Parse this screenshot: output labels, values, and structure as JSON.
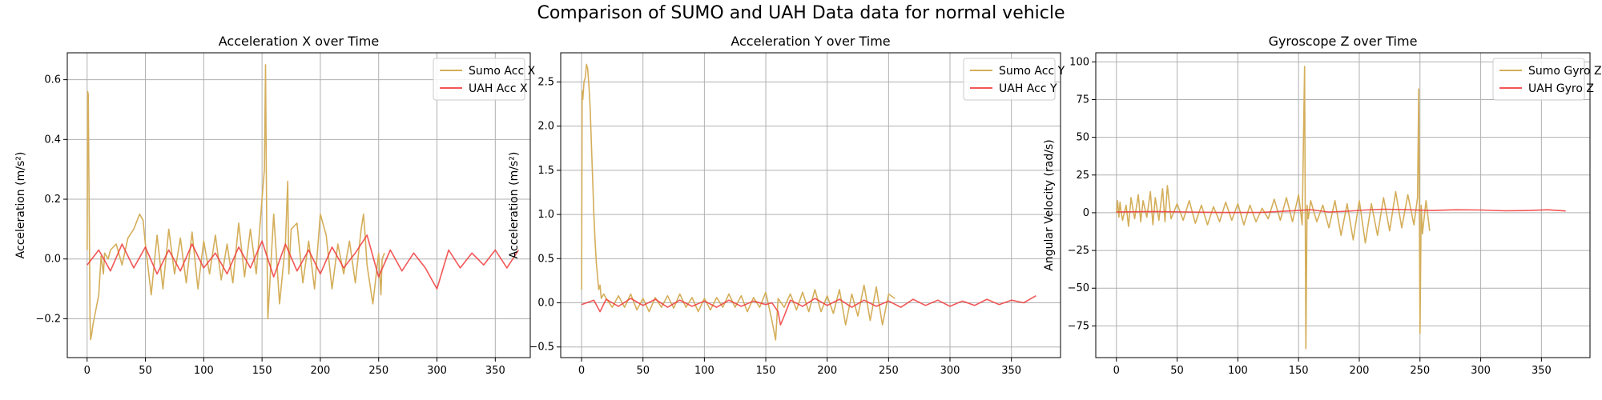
{
  "figure_title": "Comparison of SUMO and UAH Data data for normal vehicle",
  "colors": {
    "sumo": "#d4ae5a",
    "uah": "#f03a3a",
    "grid": "#b0b0b0"
  },
  "chart_data": [
    {
      "type": "line",
      "title": "Acceleration X over Time",
      "xlabel": "",
      "ylabel": "Acceleration (m/s²)",
      "xlim": [
        -17,
        380
      ],
      "ylim": [
        -0.33,
        0.69
      ],
      "xticks": [
        0,
        50,
        100,
        150,
        200,
        250,
        300,
        350
      ],
      "yticks": [
        -0.2,
        0.0,
        0.2,
        0.4,
        0.6
      ],
      "ytick_labels": [
        "−0.2",
        "0.0",
        "0.2",
        "0.4",
        "0.6"
      ],
      "grid": true,
      "legend_position": "top-right",
      "series": [
        {
          "name": "Sumo Acc X",
          "x": [
            0,
            0.5,
            1,
            1.5,
            2,
            2.5,
            3,
            4,
            5,
            6,
            8,
            10,
            12,
            14,
            15,
            18,
            20,
            25,
            30,
            35,
            40,
            45,
            48,
            50,
            55,
            60,
            65,
            70,
            75,
            80,
            85,
            90,
            95,
            100,
            105,
            110,
            115,
            120,
            125,
            130,
            135,
            140,
            145,
            150,
            152,
            153,
            154,
            155,
            160,
            165,
            170,
            172,
            173,
            175,
            180,
            185,
            190,
            195,
            200,
            205,
            210,
            215,
            220,
            225,
            230,
            235,
            237,
            238,
            240,
            245,
            250,
            252,
            253,
            255
          ],
          "y": [
            0.03,
            0.56,
            0.55,
            0.3,
            0.05,
            -0.2,
            -0.27,
            -0.25,
            -0.22,
            -0.2,
            -0.16,
            -0.12,
            0.01,
            -0.05,
            0.02,
            0.0,
            0.03,
            0.05,
            -0.02,
            0.07,
            0.1,
            0.15,
            0.13,
            0.05,
            -0.12,
            0.08,
            -0.1,
            0.1,
            -0.05,
            0.07,
            -0.08,
            0.09,
            -0.1,
            0.06,
            -0.05,
            0.08,
            -0.07,
            0.05,
            -0.08,
            0.12,
            -0.06,
            0.1,
            -0.05,
            0.2,
            0.3,
            0.65,
            0.1,
            -0.2,
            0.15,
            -0.15,
            0.05,
            0.26,
            -0.05,
            0.1,
            0.12,
            -0.08,
            0.06,
            -0.1,
            0.15,
            0.08,
            -0.1,
            0.05,
            -0.05,
            0.06,
            -0.08,
            0.1,
            0.15,
            0.1,
            -0.02,
            -0.15,
            0.02,
            -0.12,
            0.0,
            0.02
          ]
        },
        {
          "name": "UAH Acc X",
          "x": [
            0,
            10,
            20,
            30,
            40,
            50,
            60,
            70,
            80,
            90,
            100,
            110,
            120,
            130,
            140,
            150,
            160,
            170,
            180,
            190,
            200,
            210,
            220,
            230,
            240,
            250,
            260,
            270,
            280,
            290,
            300,
            310,
            320,
            330,
            340,
            350,
            360,
            370
          ],
          "y": [
            -0.02,
            0.03,
            -0.04,
            0.05,
            -0.03,
            0.04,
            -0.05,
            0.03,
            -0.04,
            0.05,
            -0.03,
            0.02,
            -0.05,
            0.04,
            -0.03,
            0.06,
            -0.06,
            0.05,
            -0.04,
            0.03,
            -0.05,
            0.04,
            -0.03,
            0.02,
            0.08,
            -0.06,
            0.03,
            -0.04,
            0.02,
            -0.03,
            -0.1,
            0.03,
            -0.03,
            0.02,
            -0.02,
            0.03,
            -0.03,
            0.03
          ]
        }
      ]
    },
    {
      "type": "line",
      "title": "Acceleration Y over Time",
      "xlabel": "",
      "ylabel": "Acceleration (m/s²)",
      "xlim": [
        -17,
        390
      ],
      "ylim": [
        -0.62,
        2.83
      ],
      "xticks": [
        0,
        50,
        100,
        150,
        200,
        250,
        300,
        350
      ],
      "yticks": [
        -0.5,
        0.0,
        0.5,
        1.0,
        1.5,
        2.0,
        2.5
      ],
      "ytick_labels": [
        "−0.5",
        "0.0",
        "0.5",
        "1.0",
        "1.5",
        "2.0",
        "2.5"
      ],
      "grid": true,
      "legend_position": "top-right",
      "series": [
        {
          "name": "Sumo Acc Y",
          "x": [
            0,
            0.5,
            1,
            2,
            3,
            4,
            5,
            6,
            7,
            8,
            9,
            10,
            11,
            12,
            13,
            14,
            15,
            16,
            18,
            20,
            25,
            30,
            35,
            40,
            45,
            50,
            55,
            60,
            65,
            70,
            75,
            80,
            85,
            90,
            95,
            100,
            105,
            110,
            115,
            120,
            125,
            130,
            135,
            140,
            145,
            150,
            155,
            158,
            160,
            165,
            170,
            175,
            180,
            185,
            190,
            195,
            200,
            205,
            210,
            215,
            220,
            225,
            230,
            235,
            240,
            245,
            250,
            255
          ],
          "y": [
            0.15,
            2.4,
            2.3,
            2.5,
            2.55,
            2.7,
            2.65,
            2.45,
            2.2,
            1.8,
            1.4,
            1.0,
            0.7,
            0.45,
            0.3,
            0.15,
            0.2,
            0.05,
            0.1,
            0.05,
            -0.05,
            0.08,
            -0.05,
            0.1,
            -0.08,
            0.05,
            -0.1,
            0.06,
            -0.05,
            0.08,
            -0.06,
            0.1,
            -0.05,
            0.06,
            -0.1,
            0.05,
            -0.08,
            0.06,
            -0.05,
            0.1,
            -0.05,
            0.08,
            -0.1,
            0.06,
            -0.05,
            0.12,
            -0.2,
            -0.42,
            0.05,
            -0.05,
            0.1,
            -0.08,
            0.12,
            -0.1,
            0.15,
            -0.1,
            0.08,
            -0.12,
            0.15,
            -0.25,
            0.1,
            -0.15,
            0.2,
            -0.2,
            0.18,
            -0.25,
            0.1,
            0.05
          ]
        },
        {
          "name": "UAH Acc Y",
          "x": [
            0,
            10,
            15,
            20,
            30,
            40,
            50,
            60,
            70,
            80,
            90,
            100,
            110,
            120,
            130,
            140,
            150,
            155,
            160,
            162,
            165,
            170,
            180,
            190,
            200,
            210,
            220,
            230,
            240,
            250,
            260,
            270,
            280,
            290,
            300,
            310,
            320,
            330,
            340,
            350,
            360,
            370
          ],
          "y": [
            -0.02,
            0.03,
            -0.1,
            0.04,
            -0.04,
            0.05,
            -0.03,
            0.04,
            -0.05,
            0.03,
            -0.04,
            0.02,
            -0.05,
            0.03,
            -0.04,
            0.02,
            -0.02,
            0.0,
            -0.1,
            -0.25,
            -0.15,
            0.03,
            -0.04,
            0.05,
            -0.03,
            0.04,
            -0.05,
            0.03,
            -0.04,
            0.02,
            -0.05,
            0.04,
            -0.03,
            0.03,
            -0.04,
            0.02,
            -0.03,
            0.04,
            -0.02,
            0.03,
            0.0,
            0.08
          ]
        }
      ]
    },
    {
      "type": "line",
      "title": "Gyroscope Z over Time",
      "xlabel": "",
      "ylabel": "Angular Velocity (rad/s)",
      "xlim": [
        -17,
        390
      ],
      "ylim": [
        -96,
        106
      ],
      "xticks": [
        0,
        50,
        100,
        150,
        200,
        250,
        300,
        350
      ],
      "yticks": [
        -75,
        -50,
        -25,
        0,
        25,
        50,
        75,
        100
      ],
      "ytick_labels": [
        "−75",
        "−50",
        "−25",
        "0",
        "25",
        "50",
        "75",
        "100"
      ],
      "grid": true,
      "legend_position": "top-right",
      "series": [
        {
          "name": "Sumo Gyro Z",
          "x": [
            0,
            1,
            2,
            3,
            4,
            5,
            8,
            10,
            12,
            15,
            18,
            20,
            22,
            25,
            28,
            30,
            32,
            35,
            38,
            40,
            42,
            45,
            50,
            55,
            60,
            65,
            70,
            75,
            80,
            85,
            90,
            95,
            100,
            105,
            110,
            115,
            120,
            125,
            130,
            135,
            140,
            145,
            150,
            153,
            155,
            156,
            157,
            158,
            160,
            165,
            170,
            175,
            180,
            185,
            190,
            195,
            200,
            205,
            210,
            215,
            220,
            225,
            230,
            235,
            240,
            245,
            248,
            249,
            250,
            251,
            252,
            255,
            258
          ],
          "y": [
            0,
            8,
            -3,
            7,
            0,
            -5,
            5,
            -9,
            10,
            -4,
            12,
            -6,
            8,
            -3,
            14,
            -8,
            10,
            -5,
            16,
            -6,
            18,
            -4,
            6,
            -5,
            8,
            -7,
            5,
            -8,
            4,
            -6,
            7,
            -5,
            6,
            -8,
            5,
            -6,
            3,
            -4,
            9,
            -5,
            10,
            -6,
            12,
            -8,
            97,
            -90,
            5,
            -4,
            8,
            -6,
            5,
            -10,
            8,
            -15,
            6,
            -18,
            8,
            -20,
            6,
            -15,
            10,
            -12,
            14,
            -10,
            12,
            -8,
            10,
            82,
            -80,
            5,
            -14,
            8,
            -12
          ]
        },
        {
          "name": "UAH Gyro Z",
          "x": [
            0,
            30,
            60,
            90,
            120,
            150,
            160,
            175,
            190,
            205,
            220,
            240,
            260,
            280,
            300,
            320,
            340,
            355,
            370
          ],
          "y": [
            0.5,
            0.8,
            0.5,
            0.2,
            0.3,
            1.5,
            2.0,
            0.5,
            1.0,
            1.8,
            2.3,
            2.0,
            1.5,
            2.0,
            1.8,
            1.3,
            1.5,
            2.0,
            1.2
          ]
        }
      ]
    }
  ]
}
